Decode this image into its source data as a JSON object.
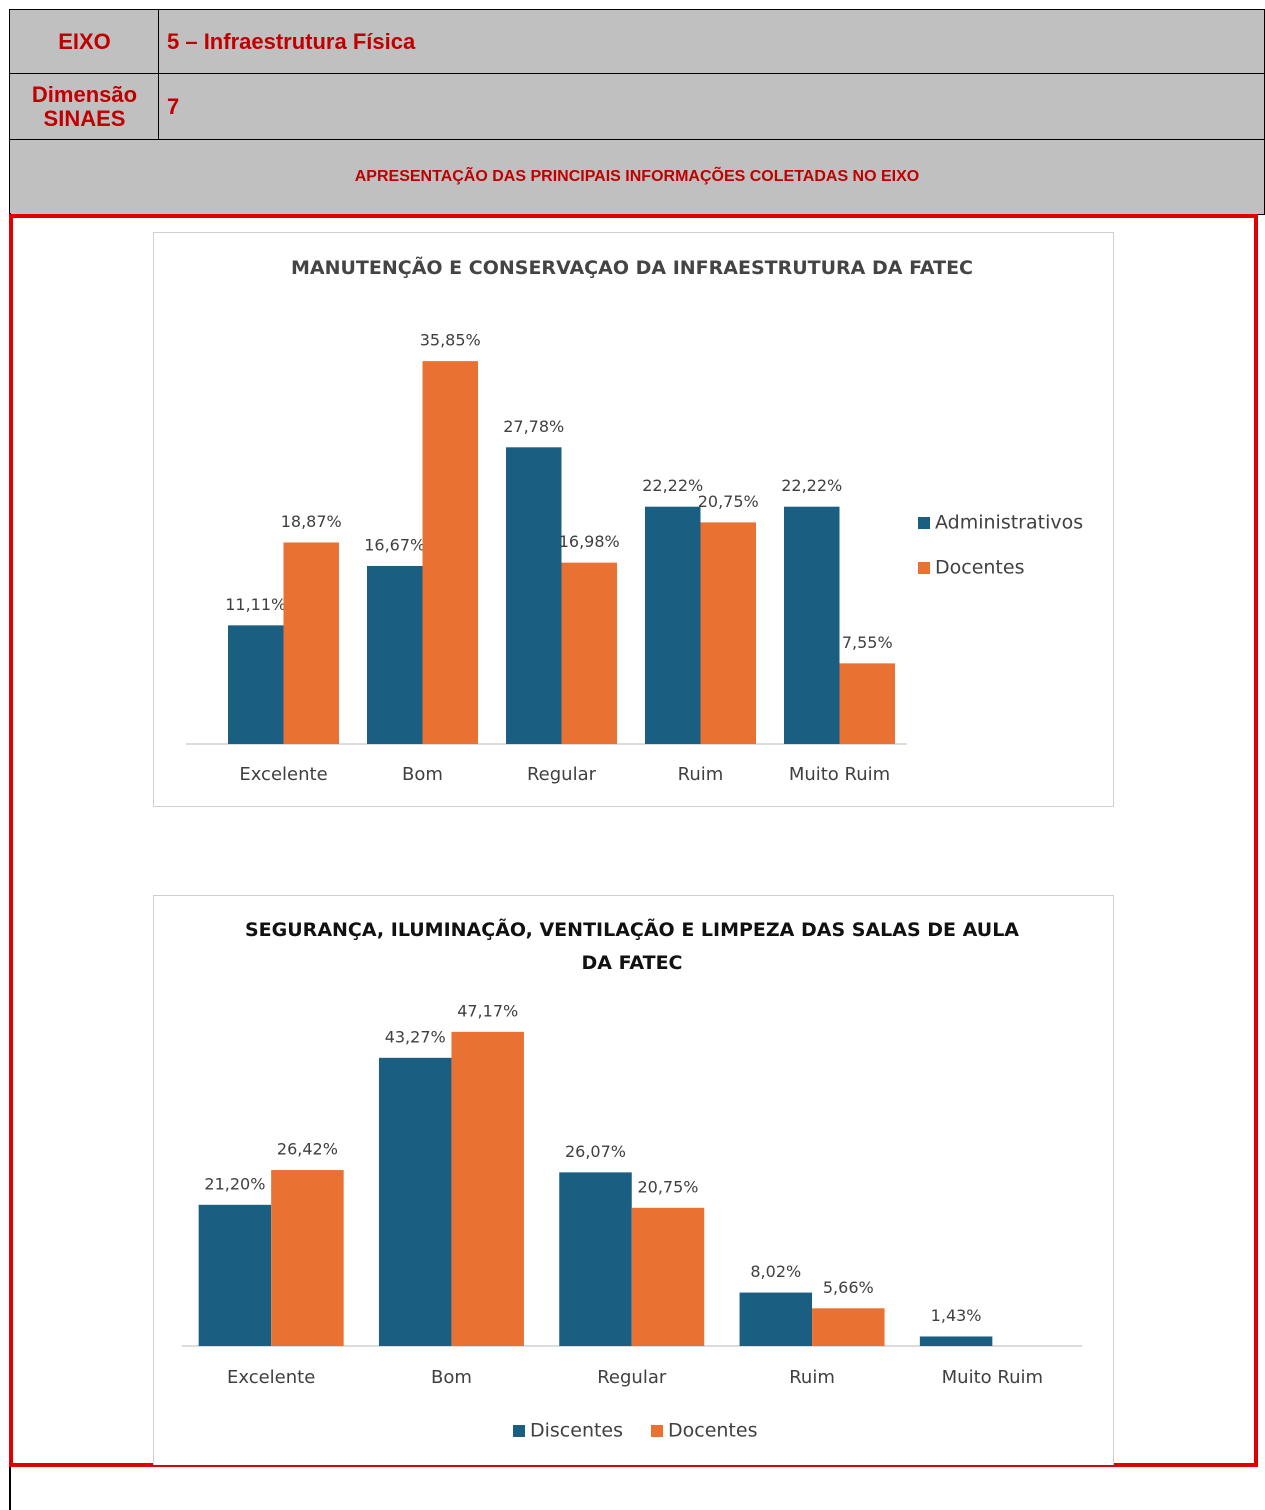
{
  "table": {
    "rows": [
      [
        "EIXO",
        "5 – Infraestrutura Física"
      ],
      [
        "Dimensão SINAES",
        "7"
      ],
      [
        "APRESENTAÇÃO DAS PRINCIPAIS INFORMAÇÕES COLETADAS NO EIXO"
      ]
    ]
  },
  "chart_data": [
    {
      "type": "bar",
      "title": "MANUTENÇÃO E CONSERVAÇAO DA INFRAESTRUTURA DA FATEC",
      "categories": [
        "Excelente",
        "Bom",
        "Regular",
        "Ruim",
        "Muito Ruim"
      ],
      "legend": "right",
      "series": [
        {
          "name": "Administrativos",
          "color": "#1a5f82",
          "values": [
            11.11,
            16.67,
            27.78,
            22.22,
            22.22
          ],
          "value_labels": [
            "11,11%",
            "16,67%",
            "27,78%",
            "22,22%",
            "22,22%"
          ]
        },
        {
          "name": "Docentes",
          "color": "#e97132",
          "values": [
            18.87,
            35.85,
            16.98,
            20.75,
            7.55
          ],
          "value_labels": [
            "18,87%",
            "35,85%",
            "16,98%",
            "20,75%",
            "7,55%"
          ]
        }
      ]
    },
    {
      "type": "bar",
      "title": "SEGURANÇA, ILUMINAÇÃO, VENTILAÇÃO E LIMPEZA DAS SALAS DE AULA DA FATEC",
      "categories": [
        "Excelente",
        "Bom",
        "Regular",
        "Ruim",
        "Muito Ruim"
      ],
      "legend": "bottom",
      "series": [
        {
          "name": "Discentes",
          "color": "#1a5f82",
          "values": [
            21.2,
            43.27,
            26.07,
            8.02,
            1.43
          ],
          "value_labels": [
            "21,20%",
            "43,27%",
            "26,07%",
            "8,02%",
            "1,43%"
          ]
        },
        {
          "name": "Docentes",
          "color": "#e97132",
          "values": [
            26.42,
            47.17,
            20.75,
            5.66,
            null
          ],
          "value_labels": [
            "26,42%",
            "47,17%",
            "20,75%",
            "5,66%",
            null
          ]
        }
      ]
    }
  ]
}
